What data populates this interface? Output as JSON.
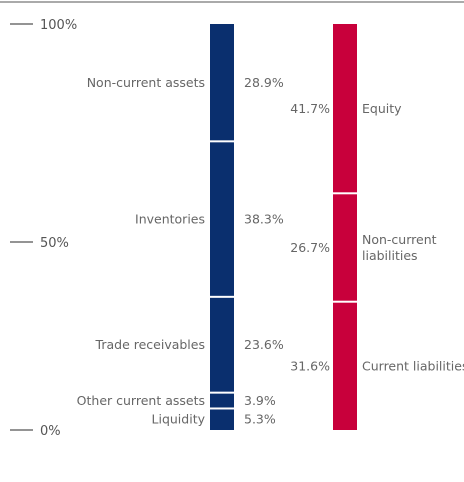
{
  "chart_data": {
    "type": "bar",
    "subtype": "stacked-100",
    "y_ticks": [
      {
        "label": "100%",
        "value": 100
      },
      {
        "label": "50%",
        "value": 50
      },
      {
        "label": "0%",
        "value": 0
      }
    ],
    "ylim": [
      0,
      100
    ],
    "bars": [
      {
        "color": "#0a2f6e",
        "segments": [
          {
            "label": "Liquidity",
            "value_label": "5.3%",
            "value": 5.3
          },
          {
            "label": "Other current assets",
            "value_label": "3.9%",
            "value": 3.9
          },
          {
            "label": "Trade receivables",
            "value_label": "23.6%",
            "value": 23.6
          },
          {
            "label": "Inventories",
            "value_label": "38.3%",
            "value": 38.3
          },
          {
            "label": "Non-current assets",
            "value_label": "28.9%",
            "value": 28.9
          }
        ]
      },
      {
        "color": "#c8003b",
        "segments": [
          {
            "label": "Current liabilities",
            "value_label": "31.6%",
            "value": 31.6
          },
          {
            "label": "Non-current liabilities",
            "label_lines": [
              "Non-current",
              "liabilities"
            ],
            "value_label": "26.7%",
            "value": 26.7
          },
          {
            "label": "Equity",
            "value_label": "41.7%",
            "value": 41.7
          }
        ]
      }
    ]
  }
}
